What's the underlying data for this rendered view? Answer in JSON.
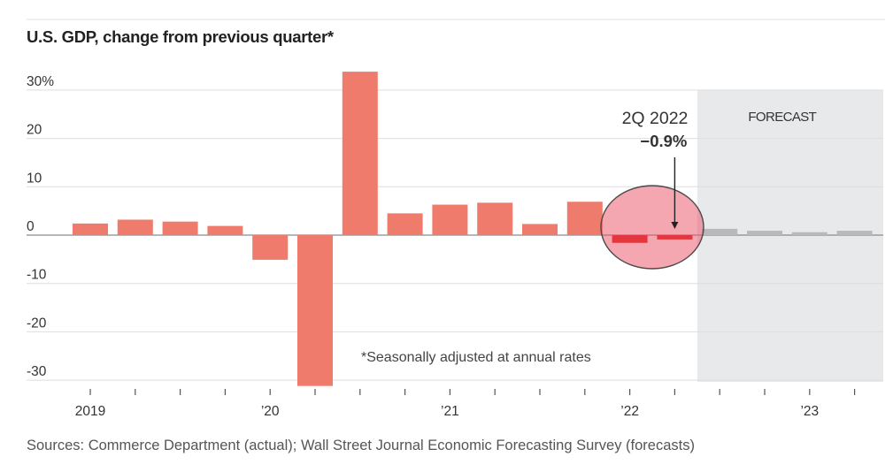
{
  "chart_data": {
    "type": "bar",
    "title": "U.S. GDP, change from previous quarter*",
    "x": [
      2019.0,
      2019.25,
      2019.5,
      2019.75,
      2020.0,
      2020.25,
      2020.5,
      2020.75,
      2021.0,
      2021.25,
      2021.5,
      2021.75,
      2022.0,
      2022.25,
      2022.5,
      2022.75,
      2023.0,
      2023.25
    ],
    "values": [
      2.4,
      3.2,
      2.8,
      1.9,
      -5.1,
      -31.2,
      33.8,
      4.5,
      6.3,
      6.7,
      2.3,
      6.9,
      -1.6,
      -0.9,
      1.3,
      0.9,
      0.6,
      0.9
    ],
    "forecast": [
      false,
      false,
      false,
      false,
      false,
      false,
      false,
      false,
      false,
      false,
      false,
      false,
      false,
      false,
      true,
      true,
      true,
      true
    ],
    "ylim": [
      -30,
      30
    ],
    "y_ticks": [
      30,
      20,
      10,
      0,
      -10,
      -20,
      -30
    ],
    "y_tick_labels": [
      "30%",
      "20",
      "10",
      "0",
      "-10",
      "-20",
      "-30"
    ],
    "x_ticks": [
      2019,
      2020,
      2021,
      2022,
      2023
    ],
    "x_tick_labels": [
      "2019",
      "’20",
      "’21",
      "’22",
      "’23"
    ],
    "grid": true,
    "forecast_start": 2022.5,
    "forecast_label": "FORECAST",
    "highlight_x": [
      2022.0,
      2022.25
    ],
    "annotation": {
      "x": 2022.25,
      "label": "2Q 2022",
      "value_label": "−0.9%"
    },
    "footnote": "*Seasonally adjusted at annual rates"
  },
  "source": "Sources: Commerce Department (actual); Wall Street Journal Economic Forecasting Survey (forecasts)",
  "colors": {
    "actual": "#ef7b6c",
    "forecast": "#b9b9b9",
    "highlight_bar": "#e3363f",
    "highlight_circle": "#e94d63",
    "highlight_stroke": "#4a4a4a",
    "forecast_band": "#e8e9eb",
    "grid": "#dedede",
    "zero_line": "#8c8c8c",
    "tick": "#555555",
    "rule": "#e2e2e2",
    "arrow": "#222222"
  }
}
